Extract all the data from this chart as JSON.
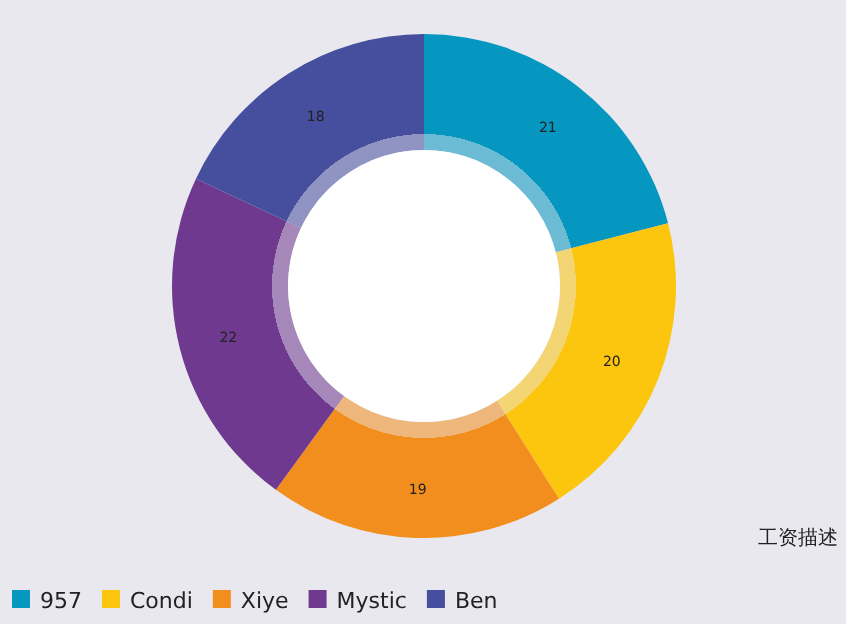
{
  "chart_data": {
    "type": "donut",
    "categories": [
      "957",
      "Condi",
      "Xiye",
      "Mystic",
      "Ben"
    ],
    "values": [
      21,
      20,
      19,
      22,
      18
    ],
    "colors": [
      "#0597c0",
      "#fcc50e",
      "#f28e1e",
      "#6e398e",
      "#454f9e"
    ],
    "data_labels": true,
    "legend": "bottom left",
    "annotations": [
      "工资描述"
    ]
  }
}
